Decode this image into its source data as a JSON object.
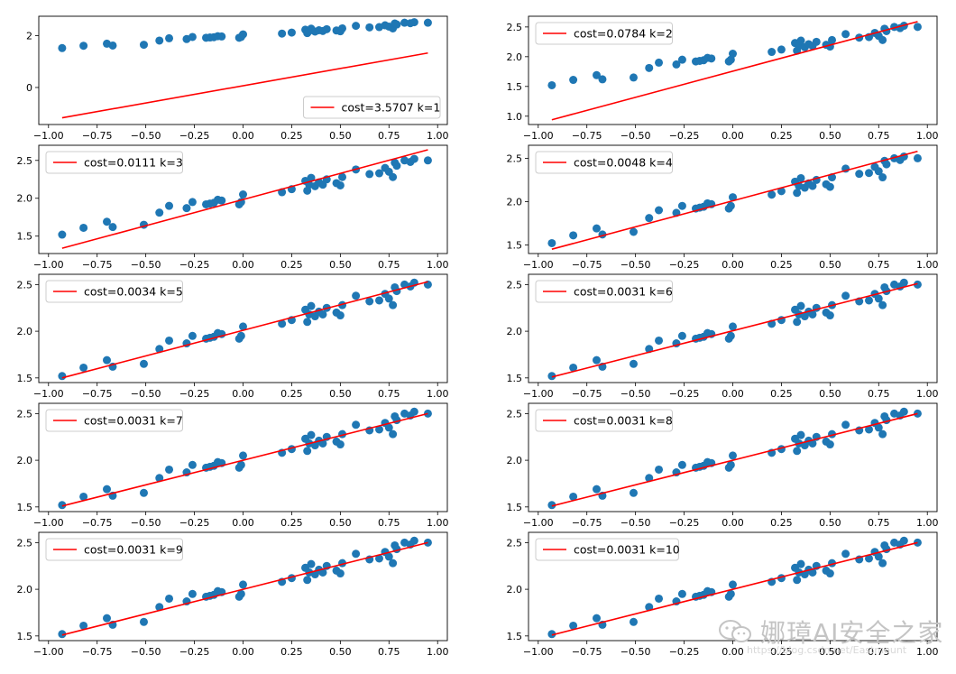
{
  "points": {
    "x": [
      -0.93,
      -0.82,
      -0.7,
      -0.67,
      -0.51,
      -0.43,
      -0.38,
      -0.29,
      -0.26,
      -0.19,
      -0.17,
      -0.15,
      -0.13,
      -0.11,
      -0.02,
      -0.01,
      0.0,
      0.2,
      0.25,
      0.32,
      0.33,
      0.34,
      0.35,
      0.37,
      0.39,
      0.41,
      0.43,
      0.48,
      0.5,
      0.51,
      0.58,
      0.65,
      0.7,
      0.73,
      0.75,
      0.77,
      0.78,
      0.79,
      0.83,
      0.86,
      0.88,
      0.95
    ],
    "y": [
      1.52,
      1.61,
      1.69,
      1.62,
      1.65,
      1.81,
      1.9,
      1.87,
      1.95,
      1.92,
      1.93,
      1.94,
      1.98,
      1.97,
      1.92,
      1.95,
      2.05,
      2.08,
      2.12,
      2.23,
      2.1,
      2.18,
      2.27,
      2.16,
      2.21,
      2.18,
      2.25,
      2.2,
      2.17,
      2.28,
      2.38,
      2.32,
      2.33,
      2.4,
      2.35,
      2.28,
      2.47,
      2.43,
      2.5,
      2.48,
      2.52,
      2.5
    ]
  },
  "colors": {
    "scatter": "#1f77b4",
    "line": "#ff0000"
  },
  "chart_data": [
    {
      "type": "scatter+line",
      "legend": "cost=3.5707 k=1",
      "legend_loc": "lower-right",
      "line": {
        "x": [
          -0.93,
          0.95
        ],
        "y": [
          -1.17,
          1.33
        ]
      },
      "xlim": [
        -1.05,
        1.05
      ],
      "xticks": [
        -1.0,
        -0.75,
        -0.5,
        -0.25,
        0.0,
        0.25,
        0.5,
        0.75,
        1.0
      ],
      "xtick_labels": [
        "−1.00",
        "−0.75",
        "−0.50",
        "−0.25",
        "0.00",
        "0.25",
        "0.50",
        "0.75",
        "1.00"
      ],
      "ylim": [
        -1.43,
        2.75
      ],
      "yticks": [
        0,
        2
      ],
      "ytick_labels": [
        "0",
        "2"
      ]
    },
    {
      "type": "scatter+line",
      "legend": "cost=0.0784 k=2",
      "legend_loc": "upper-left",
      "line": {
        "x": [
          -0.93,
          0.95
        ],
        "y": [
          0.94,
          2.59
        ]
      },
      "xlim": [
        -1.05,
        1.05
      ],
      "xticks": [
        -1.0,
        -0.75,
        -0.5,
        -0.25,
        0.0,
        0.25,
        0.5,
        0.75,
        1.0
      ],
      "xtick_labels": [
        "−1.00",
        "−0.75",
        "−0.50",
        "−0.25",
        "0.00",
        "0.25",
        "0.50",
        "0.75",
        "1.00"
      ],
      "ylim": [
        0.86,
        2.68
      ],
      "yticks": [
        1.0,
        1.5,
        2.0,
        2.5
      ],
      "ytick_labels": [
        "1.0",
        "1.5",
        "2.0",
        "2.5"
      ]
    },
    {
      "type": "scatter+line",
      "legend": "cost=0.0111 k=3",
      "legend_loc": "upper-left",
      "line": {
        "x": [
          -0.93,
          0.95
        ],
        "y": [
          1.34,
          2.64
        ]
      },
      "xlim": [
        -1.05,
        1.05
      ],
      "xticks": [
        -1.0,
        -0.75,
        -0.5,
        -0.25,
        0.0,
        0.25,
        0.5,
        0.75,
        1.0
      ],
      "xtick_labels": [
        "−1.00",
        "−0.75",
        "−0.50",
        "−0.25",
        "0.00",
        "0.25",
        "0.50",
        "0.75",
        "1.00"
      ],
      "ylim": [
        1.27,
        2.7
      ],
      "yticks": [
        1.5,
        2.0,
        2.5
      ],
      "ytick_labels": [
        "1.5",
        "2.0",
        "2.5"
      ]
    },
    {
      "type": "scatter+line",
      "legend": "cost=0.0048 k=4",
      "legend_loc": "upper-left",
      "line": {
        "x": [
          -0.93,
          0.95
        ],
        "y": [
          1.45,
          2.58
        ]
      },
      "xlim": [
        -1.05,
        1.05
      ],
      "xticks": [
        -1.0,
        -0.75,
        -0.5,
        -0.25,
        0.0,
        0.25,
        0.5,
        0.75,
        1.0
      ],
      "xtick_labels": [
        "−1.00",
        "−0.75",
        "−0.50",
        "−0.25",
        "0.00",
        "0.25",
        "0.50",
        "0.75",
        "1.00"
      ],
      "ylim": [
        1.4,
        2.65
      ],
      "yticks": [
        1.5,
        2.0,
        2.5
      ],
      "ytick_labels": [
        "1.5",
        "2.0",
        "2.5"
      ]
    },
    {
      "type": "scatter+line",
      "legend": "cost=0.0034 k=5",
      "legend_loc": "upper-left",
      "line": {
        "x": [
          -0.93,
          0.95
        ],
        "y": [
          1.5,
          2.53
        ]
      },
      "xlim": [
        -1.05,
        1.05
      ],
      "xticks": [
        -1.0,
        -0.75,
        -0.5,
        -0.25,
        0.0,
        0.25,
        0.5,
        0.75,
        1.0
      ],
      "xtick_labels": [
        "−1.00",
        "−0.75",
        "−0.50",
        "−0.25",
        "0.00",
        "0.25",
        "0.50",
        "0.75",
        "1.00"
      ],
      "ylim": [
        1.45,
        2.61
      ],
      "yticks": [
        1.5,
        2.0,
        2.5
      ],
      "ytick_labels": [
        "1.5",
        "2.0",
        "2.5"
      ]
    },
    {
      "type": "scatter+line",
      "legend": "cost=0.0031 k=6",
      "legend_loc": "upper-left",
      "line": {
        "x": [
          -0.93,
          0.95
        ],
        "y": [
          1.51,
          2.51
        ]
      },
      "xlim": [
        -1.05,
        1.05
      ],
      "xticks": [
        -1.0,
        -0.75,
        -0.5,
        -0.25,
        0.0,
        0.25,
        0.5,
        0.75,
        1.0
      ],
      "xtick_labels": [
        "−1.00",
        "−0.75",
        "−0.50",
        "−0.25",
        "0.00",
        "0.25",
        "0.50",
        "0.75",
        "1.00"
      ],
      "ylim": [
        1.45,
        2.61
      ],
      "yticks": [
        1.5,
        2.0,
        2.5
      ],
      "ytick_labels": [
        "1.5",
        "2.0",
        "2.5"
      ]
    },
    {
      "type": "scatter+line",
      "legend": "cost=0.0031 k=7",
      "legend_loc": "upper-left",
      "line": {
        "x": [
          -0.93,
          0.95
        ],
        "y": [
          1.51,
          2.5
        ]
      },
      "xlim": [
        -1.05,
        1.05
      ],
      "xticks": [
        -1.0,
        -0.75,
        -0.5,
        -0.25,
        0.0,
        0.25,
        0.5,
        0.75,
        1.0
      ],
      "xtick_labels": [
        "−1.00",
        "−0.75",
        "−0.50",
        "−0.25",
        "0.00",
        "0.25",
        "0.50",
        "0.75",
        "1.00"
      ],
      "ylim": [
        1.45,
        2.61
      ],
      "yticks": [
        1.5,
        2.0,
        2.5
      ],
      "ytick_labels": [
        "1.5",
        "2.0",
        "2.5"
      ]
    },
    {
      "type": "scatter+line",
      "legend": "cost=0.0031 k=8",
      "legend_loc": "upper-left",
      "line": {
        "x": [
          -0.93,
          0.95
        ],
        "y": [
          1.51,
          2.5
        ]
      },
      "xlim": [
        -1.05,
        1.05
      ],
      "xticks": [
        -1.0,
        -0.75,
        -0.5,
        -0.25,
        0.0,
        0.25,
        0.5,
        0.75,
        1.0
      ],
      "xtick_labels": [
        "−1.00",
        "−0.75",
        "−0.50",
        "−0.25",
        "0.00",
        "0.25",
        "0.50",
        "0.75",
        "1.00"
      ],
      "ylim": [
        1.45,
        2.61
      ],
      "yticks": [
        1.5,
        2.0,
        2.5
      ],
      "ytick_labels": [
        "1.5",
        "2.0",
        "2.5"
      ]
    },
    {
      "type": "scatter+line",
      "legend": "cost=0.0031 k=9",
      "legend_loc": "upper-left",
      "line": {
        "x": [
          -0.93,
          0.95
        ],
        "y": [
          1.51,
          2.5
        ]
      },
      "xlim": [
        -1.05,
        1.05
      ],
      "xticks": [
        -1.0,
        -0.75,
        -0.5,
        -0.25,
        0.0,
        0.25,
        0.5,
        0.75,
        1.0
      ],
      "xtick_labels": [
        "−1.00",
        "−0.75",
        "−0.50",
        "−0.25",
        "0.00",
        "0.25",
        "0.50",
        "0.75",
        "1.00"
      ],
      "ylim": [
        1.45,
        2.61
      ],
      "yticks": [
        1.5,
        2.0,
        2.5
      ],
      "ytick_labels": [
        "1.5",
        "2.0",
        "2.5"
      ]
    },
    {
      "type": "scatter+line",
      "legend": "cost=0.0031 k=10",
      "legend_loc": "upper-left",
      "line": {
        "x": [
          -0.93,
          0.95
        ],
        "y": [
          1.51,
          2.5
        ]
      },
      "xlim": [
        -1.05,
        1.05
      ],
      "xticks": [
        -1.0,
        -0.75,
        -0.5,
        -0.25,
        0.0,
        0.25,
        0.5,
        0.75,
        1.0
      ],
      "xtick_labels": [
        "−1.00",
        "−0.75",
        "−0.50",
        "−0.25",
        "0.00",
        "0.25",
        "0.50",
        "0.75",
        "1.00"
      ],
      "ylim": [
        1.45,
        2.61
      ],
      "yticks": [
        1.5,
        2.0,
        2.5
      ],
      "ytick_labels": [
        "1.5",
        "2.0",
        "2.5"
      ]
    }
  ],
  "watermark": {
    "text": "娜璋AI安全之家",
    "url": "https://blog.csdn.net/Eastmount",
    "logo": "wechat-icon"
  }
}
